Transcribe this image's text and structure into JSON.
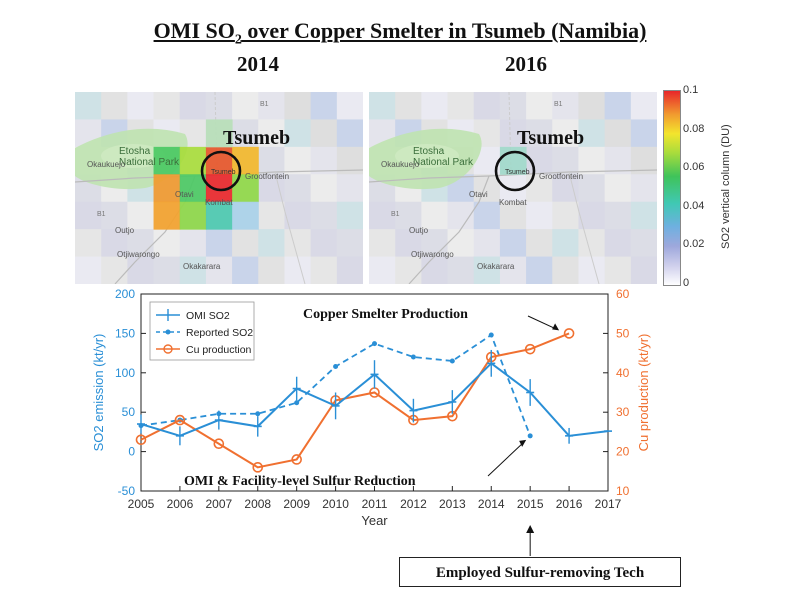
{
  "header": {
    "title_prefix": "OMI SO",
    "title_sub": "2",
    "title_suffix": " over Copper Smelter in Tsumeb (Namibia)",
    "year_left": "2014",
    "year_right": "2016"
  },
  "maps": {
    "city_label": "Tsumeb",
    "park_label_line1": "Etosha",
    "park_label_line2": "National Park",
    "town_labels": [
      "Okaukuejo",
      "Tsumeb",
      "Grootfontein",
      "Otavi",
      "Kombat",
      "Outjo",
      "Otjiwarongo",
      "Okakarara"
    ],
    "road_label": "B1"
  },
  "colorbar": {
    "ticks": [
      "0.1",
      "0.08",
      "0.06",
      "0.04",
      "0.02",
      "0"
    ],
    "label": "SO2 vertical column (DU)",
    "colors": [
      "#e8262a",
      "#f19a2f",
      "#f3e52d",
      "#a8dc3c",
      "#3fc35a",
      "#40c8b4",
      "#6fb0e0",
      "#9ea8dc",
      "#cfcfec",
      "#ffffff"
    ]
  },
  "chart_data": {
    "type": "line",
    "x": [
      2005,
      2006,
      2007,
      2008,
      2009,
      2010,
      2011,
      2012,
      2013,
      2014,
      2015,
      2016,
      2017
    ],
    "xlabel": "Year",
    "ylabel_left": "SO2 emission (kt/yr)",
    "ylabel_right": "Cu production (kt/yr)",
    "ylim_left": [
      -50,
      200
    ],
    "ylim_right": [
      10,
      60
    ],
    "yticks_left": [
      -50,
      0,
      50,
      100,
      150,
      200
    ],
    "yticks_right": [
      10,
      20,
      30,
      40,
      50,
      60
    ],
    "legend_position": "top-left",
    "series": [
      {
        "name": "OMI SO2",
        "axis": "left",
        "color": "#2a8fd6",
        "style": "solid-errorbar",
        "x": [
          2005,
          2006,
          2007,
          2008,
          2009,
          2010,
          2011,
          2012,
          2013,
          2014,
          2015,
          2016,
          2017
        ],
        "values": [
          35,
          20,
          40,
          32,
          80,
          58,
          98,
          52,
          63,
          112,
          75,
          20,
          26
        ],
        "errors": [
          12,
          12,
          12,
          13,
          15,
          17,
          18,
          15,
          15,
          17,
          17,
          10,
          0
        ]
      },
      {
        "name": "Reported SO2",
        "axis": "left",
        "color": "#2a8fd6",
        "style": "dashed-dot",
        "x": [
          2005,
          2006,
          2007,
          2008,
          2009,
          2010,
          2011,
          2012,
          2013,
          2014,
          2015
        ],
        "values": [
          33,
          40,
          48,
          48,
          62,
          108,
          137,
          120,
          115,
          148,
          20
        ]
      },
      {
        "name": "Cu production",
        "axis": "right",
        "color": "#f07030",
        "style": "solid-circle",
        "x": [
          2005,
          2006,
          2007,
          2008,
          2009,
          2010,
          2011,
          2012,
          2013,
          2014,
          2015,
          2016
        ],
        "values": [
          23,
          28,
          22,
          16,
          18,
          33,
          35,
          28,
          29,
          44,
          46,
          50
        ]
      }
    ],
    "annotations": [
      {
        "text": "Copper Smelter Production",
        "points_to": {
          "x": 2016,
          "y_right": 50
        }
      },
      {
        "text": "OMI & Facility-level Sulfur Reduction",
        "points_to": {
          "x": 2015,
          "y_left": 20
        }
      },
      {
        "text": "Employed Sulfur-removing Tech",
        "points_to": {
          "x": 2015,
          "y_left": -50
        }
      }
    ]
  }
}
